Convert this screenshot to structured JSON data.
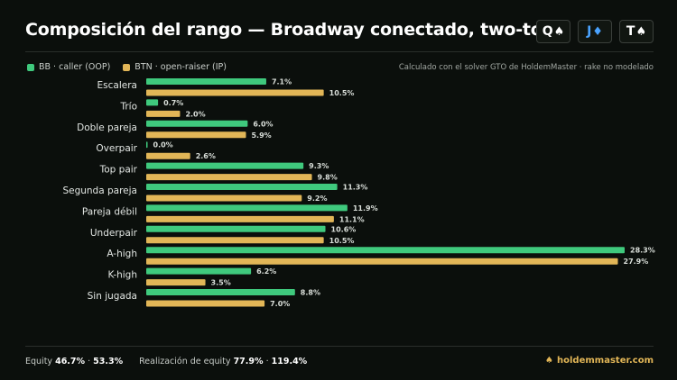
{
  "title": "Composición del rango — Broadway conectado, two-tone",
  "board": [
    {
      "rank": "Q",
      "suit": "♠",
      "color": "#ffffff"
    },
    {
      "rank": "J",
      "suit": "♦",
      "color": "#4aa3ff"
    },
    {
      "rank": "T",
      "suit": "♠",
      "color": "#ffffff"
    }
  ],
  "note": "Calculado con el solver GTO de HoldemMaster · rake no modelado",
  "colors": {
    "bb": "#3fc97d",
    "btn": "#e2b657"
  },
  "chart_data": {
    "type": "bar",
    "orientation": "horizontal",
    "categories": [
      "Escalera",
      "Trío",
      "Doble pareja",
      "Overpair",
      "Top pair",
      "Segunda pareja",
      "Pareja débil",
      "Underpair",
      "A-high",
      "K-high",
      "Sin jugada"
    ],
    "series": [
      {
        "name": "BB · caller (OOP)",
        "values": [
          7.1,
          0.7,
          6.0,
          0.0,
          9.3,
          11.3,
          11.9,
          10.6,
          28.3,
          6.2,
          8.8
        ]
      },
      {
        "name": "BTN · open-raiser (IP)",
        "values": [
          10.5,
          2.0,
          5.9,
          2.6,
          9.8,
          9.2,
          11.1,
          10.5,
          27.9,
          3.5,
          7.0
        ]
      }
    ],
    "value_suffix": "%",
    "xlim": [
      0,
      28.3
    ],
    "legend": "top-left",
    "grid": false
  },
  "footer": {
    "equity_label": "Equity",
    "equity_bb": "46.7%",
    "sep": "·",
    "equity_btn": "53.3%",
    "realization_label": "Realización de equity",
    "realization_bb": "77.9%",
    "realization_btn": "119.4%"
  },
  "brand": {
    "icon": "spade-icon",
    "text": "holdemmaster.com"
  }
}
